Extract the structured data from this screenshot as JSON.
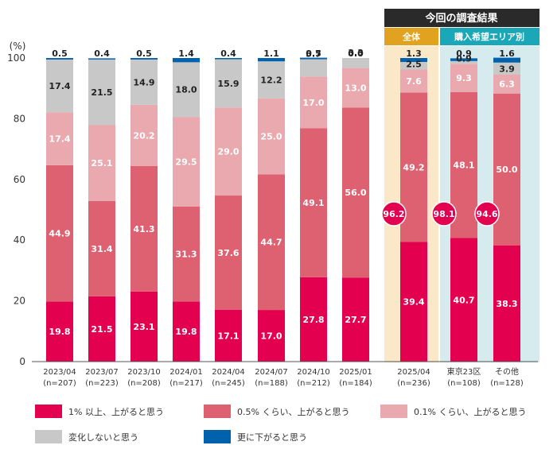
{
  "chart_data": {
    "type": "bar",
    "stacked": true,
    "y_unit": "(%)",
    "ylim": [
      0,
      100
    ],
    "yticks": [
      0,
      20,
      40,
      60,
      80,
      100
    ],
    "header": {
      "title": "今回の調査結果",
      "group_overall": "全体",
      "group_area": "購入希望エリア別"
    },
    "categories": [
      [
        "2023/04",
        "(n=207)"
      ],
      [
        "2023/07",
        "(n=223)"
      ],
      [
        "2023/10",
        "(n=208)"
      ],
      [
        "2024/01",
        "(n=217)"
      ],
      [
        "2024/04",
        "(n=245)"
      ],
      [
        "2024/07",
        "(n=188)"
      ],
      [
        "2024/10",
        "(n=212)"
      ],
      [
        "2025/01",
        "(n=184)"
      ],
      [
        "2025/04",
        "(n=236)"
      ],
      [
        "東京23区",
        "(n=108)"
      ],
      [
        "その他",
        "(n=128)"
      ]
    ],
    "series": [
      {
        "name": "1% 以上、上がると思う",
        "color": "#e3004f",
        "text_color": "#ffffff",
        "values": [
          19.8,
          21.5,
          23.1,
          19.8,
          17.1,
          17.0,
          27.8,
          27.7,
          39.4,
          40.7,
          38.3
        ]
      },
      {
        "name": "0.5% くらい、上がると思う",
        "color": "#dd6170",
        "text_color": "#ffffff",
        "values": [
          44.9,
          31.4,
          41.3,
          31.3,
          37.6,
          44.7,
          49.1,
          56.0,
          49.2,
          48.1,
          50.0
        ]
      },
      {
        "name": "0.1% くらい、上がると思う",
        "color": "#e9a9af",
        "text_color": "#ffffff",
        "values": [
          17.4,
          25.1,
          20.2,
          29.5,
          29.0,
          25.0,
          17.0,
          13.0,
          7.6,
          9.3,
          6.3
        ]
      },
      {
        "name": "変化しないと思う",
        "color": "#c8c8c8",
        "text_color": "#222222",
        "values": [
          17.4,
          21.5,
          14.9,
          18.0,
          15.9,
          12.2,
          5.7,
          3.3,
          2.5,
          0.9,
          3.9
        ]
      },
      {
        "name": "更に下がると思う",
        "color": "#0062ad",
        "text_color": "#222222",
        "values": [
          0.5,
          0.4,
          0.5,
          1.4,
          0.4,
          1.1,
          0.5,
          0.0,
          1.3,
          0.9,
          1.6
        ]
      }
    ],
    "totals_badge": [
      {
        "index": 8,
        "label": "96.2"
      },
      {
        "index": 9,
        "label": "98.1"
      },
      {
        "index": 10,
        "label": "94.6"
      }
    ],
    "colors": {
      "overall_bg": "#fbe8c8",
      "area_bg": "#d6ebee",
      "overall_hdr": "#e0a21f",
      "area_hdr": "#1aa8b8",
      "title_hdr": "#2a2a2a"
    }
  }
}
